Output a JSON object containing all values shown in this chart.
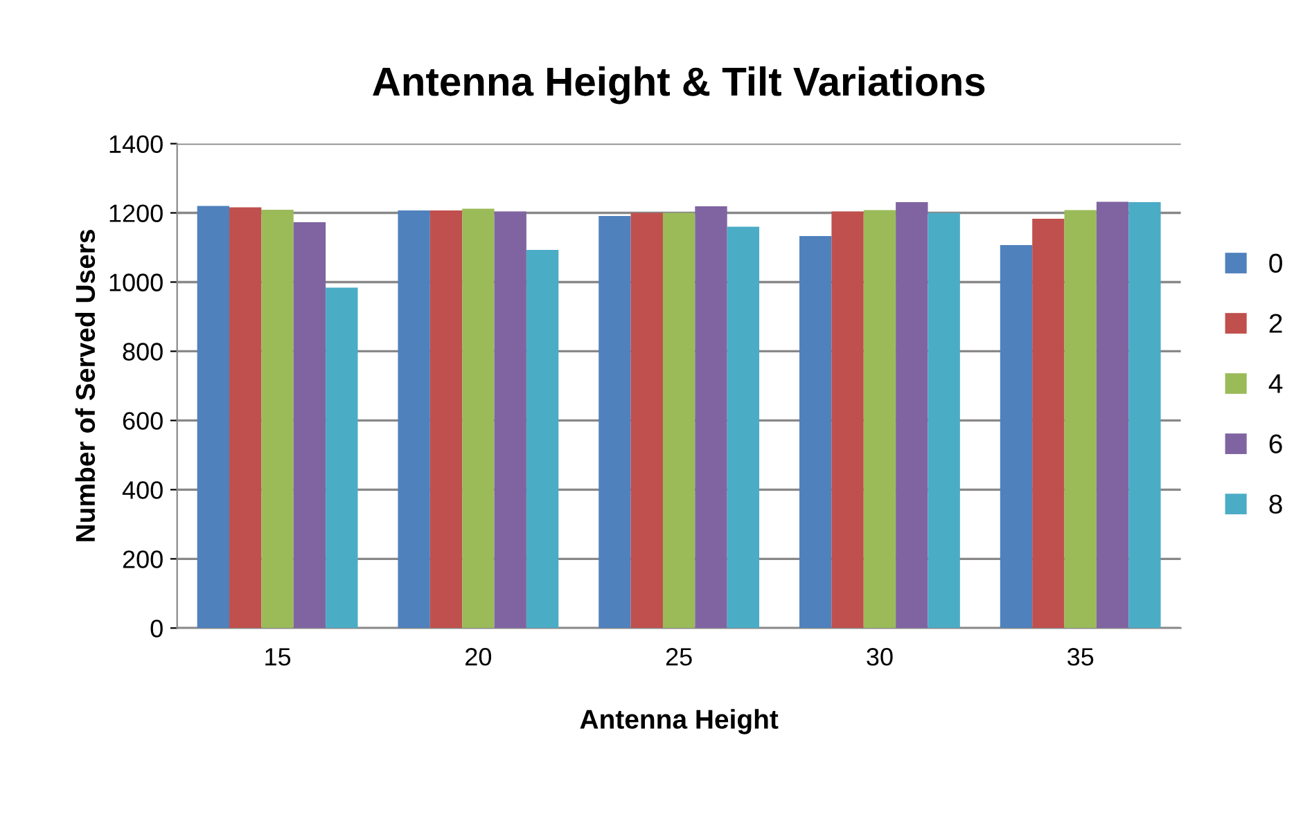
{
  "chart_data": {
    "type": "bar",
    "title": "Antenna Height & Tilt Variations",
    "xlabel": "Antenna Height",
    "ylabel": "Number of Served Users",
    "categories": [
      "15",
      "20",
      "25",
      "30",
      "35"
    ],
    "series": [
      {
        "name": "0",
        "color": "#4f81bd",
        "values": [
          1220,
          1207,
          1191,
          1133,
          1107
        ]
      },
      {
        "name": "2",
        "color": "#c0504d",
        "values": [
          1216,
          1207,
          1200,
          1204,
          1183
        ]
      },
      {
        "name": "4",
        "color": "#9bbb59",
        "values": [
          1209,
          1212,
          1200,
          1208,
          1208
        ]
      },
      {
        "name": "6",
        "color": "#8064a2",
        "values": [
          1173,
          1204,
          1219,
          1231,
          1232
        ]
      },
      {
        "name": "8",
        "color": "#4bacc6",
        "values": [
          984,
          1093,
          1160,
          1200,
          1231
        ]
      }
    ],
    "ylim": [
      0,
      1400
    ],
    "yticks": [
      0,
      200,
      400,
      600,
      800,
      1000,
      1200,
      1400
    ],
    "grid": "y",
    "legend": "right"
  }
}
